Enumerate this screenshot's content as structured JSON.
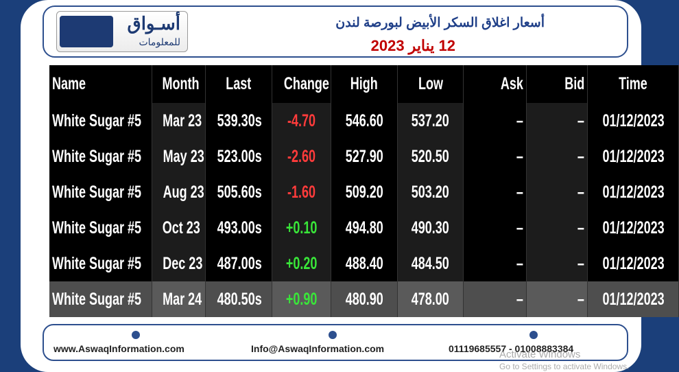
{
  "header": {
    "logo_name": "أسـواق",
    "logo_sub": "للمعلومات",
    "title": "أسعار اغلاق السكر الأبيض لبورصة لندن",
    "date": "12 يناير 2023"
  },
  "table": {
    "columns": [
      "Name",
      "Month",
      "Last",
      "Change",
      "High",
      "Low",
      "Ask",
      "Bid",
      "Time"
    ],
    "rows": [
      [
        "White Sugar #5",
        "Mar 23",
        "539.30s",
        "-4.70",
        "546.60",
        "537.20",
        "–",
        "–",
        "01/12/2023"
      ],
      [
        "White Sugar #5",
        "May 23",
        "523.00s",
        "-2.60",
        "527.90",
        "520.50",
        "–",
        "–",
        "01/12/2023"
      ],
      [
        "White Sugar #5",
        "Aug 23",
        "505.60s",
        "-1.60",
        "509.20",
        "503.20",
        "–",
        "–",
        "01/12/2023"
      ],
      [
        "White Sugar #5",
        "Oct 23",
        "493.00s",
        "+0.10",
        "494.80",
        "490.30",
        "–",
        "–",
        "01/12/2023"
      ],
      [
        "White Sugar #5",
        "Dec 23",
        "487.00s",
        "+0.20",
        "488.40",
        "484.50",
        "–",
        "–",
        "01/12/2023"
      ],
      [
        "White Sugar #5",
        "Mar 24",
        "480.50s",
        "+0.90",
        "480.90",
        "478.00",
        "–",
        "–",
        "01/12/2023"
      ]
    ]
  },
  "footer": {
    "website": "www.AswaqInformation.com",
    "email": "Info@AswaqInformation.com",
    "phone": "01119685557 - 01008883384"
  },
  "watermark": {
    "line1": "Activate Windows",
    "line2": "Go to Settings to activate Windows."
  }
}
